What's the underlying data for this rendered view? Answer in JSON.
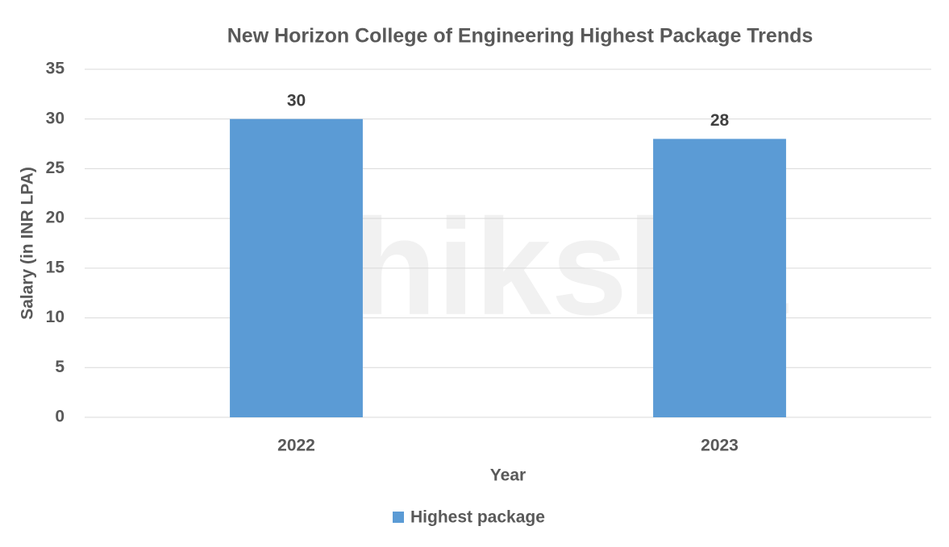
{
  "chart_data": {
    "type": "bar",
    "title": "New Horizon College of Engineering Highest Package Trends",
    "x_label": "Year",
    "y_label": "Salary (in INR LPA)",
    "categories": [
      "2022",
      "2023"
    ],
    "series": [
      {
        "name": "Highest package",
        "color": "#5b9bd5",
        "values": [
          30,
          28
        ]
      }
    ],
    "ylim": [
      0,
      35
    ],
    "yticks": [
      0,
      5,
      10,
      15,
      20,
      25,
      30,
      35
    ],
    "grid": true,
    "legend": "bottom",
    "data_labels": true,
    "watermark": "shiksha"
  }
}
